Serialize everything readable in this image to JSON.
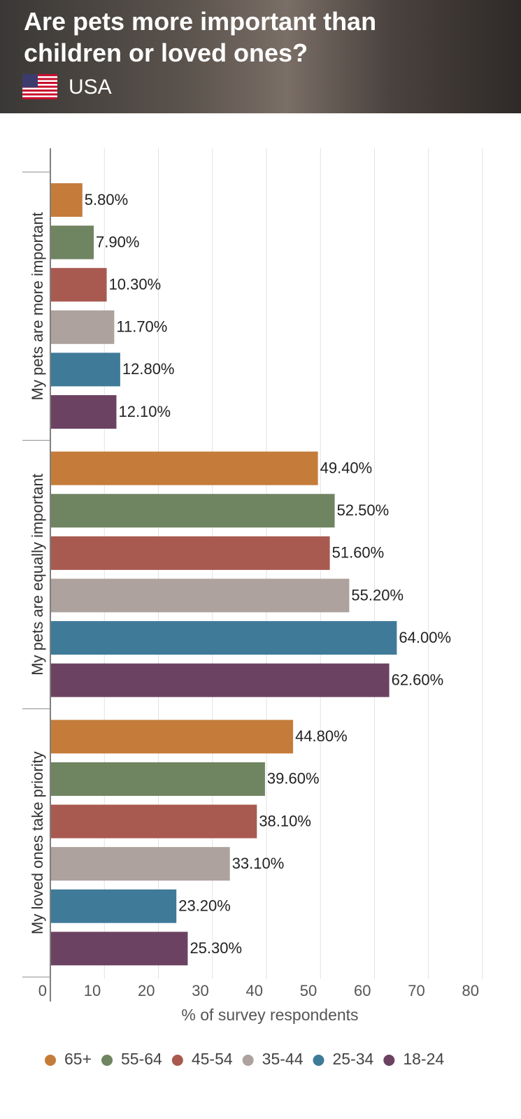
{
  "chart_data": {
    "type": "bar",
    "orientation": "horizontal",
    "title": "Are pets more important than children or loved ones?",
    "subtitle": "USA",
    "categories": [
      "My pets are more important",
      "My pets are equally important",
      "My loved ones take priority"
    ],
    "series": [
      {
        "name": "65+",
        "color": "#c57c3a",
        "values": [
          5.8,
          49.4,
          44.8
        ],
        "value_labels": [
          "5.80%",
          "49.40%",
          "44.80%"
        ]
      },
      {
        "name": "55-64",
        "color": "#6f8460",
        "values": [
          7.9,
          52.5,
          39.6
        ],
        "value_labels": [
          "7.90%",
          "52.50%",
          "39.60%"
        ]
      },
      {
        "name": "45-54",
        "color": "#a85a50",
        "values": [
          10.3,
          51.6,
          38.1
        ],
        "value_labels": [
          "10.30%",
          "51.60%",
          "38.10%"
        ]
      },
      {
        "name": "35-44",
        "color": "#ada29d",
        "values": [
          11.7,
          55.2,
          33.1
        ],
        "value_labels": [
          "11.70%",
          "55.20%",
          "33.10%"
        ]
      },
      {
        "name": "25-34",
        "color": "#3f7a99",
        "values": [
          12.8,
          64.0,
          23.2
        ],
        "value_labels": [
          "12.80%",
          "64.00%",
          "23.20%"
        ]
      },
      {
        "name": "18-24",
        "color": "#6c4262",
        "values": [
          12.1,
          62.6,
          25.3
        ],
        "value_labels": [
          "12.10%",
          "62.60%",
          "25.30%"
        ]
      }
    ],
    "x_label": "% of survey respondents",
    "xlim": [
      0,
      80
    ],
    "xticks": [
      0,
      10,
      20,
      30,
      40,
      50,
      60,
      70,
      80
    ],
    "grid": true,
    "legend": "bottom"
  }
}
